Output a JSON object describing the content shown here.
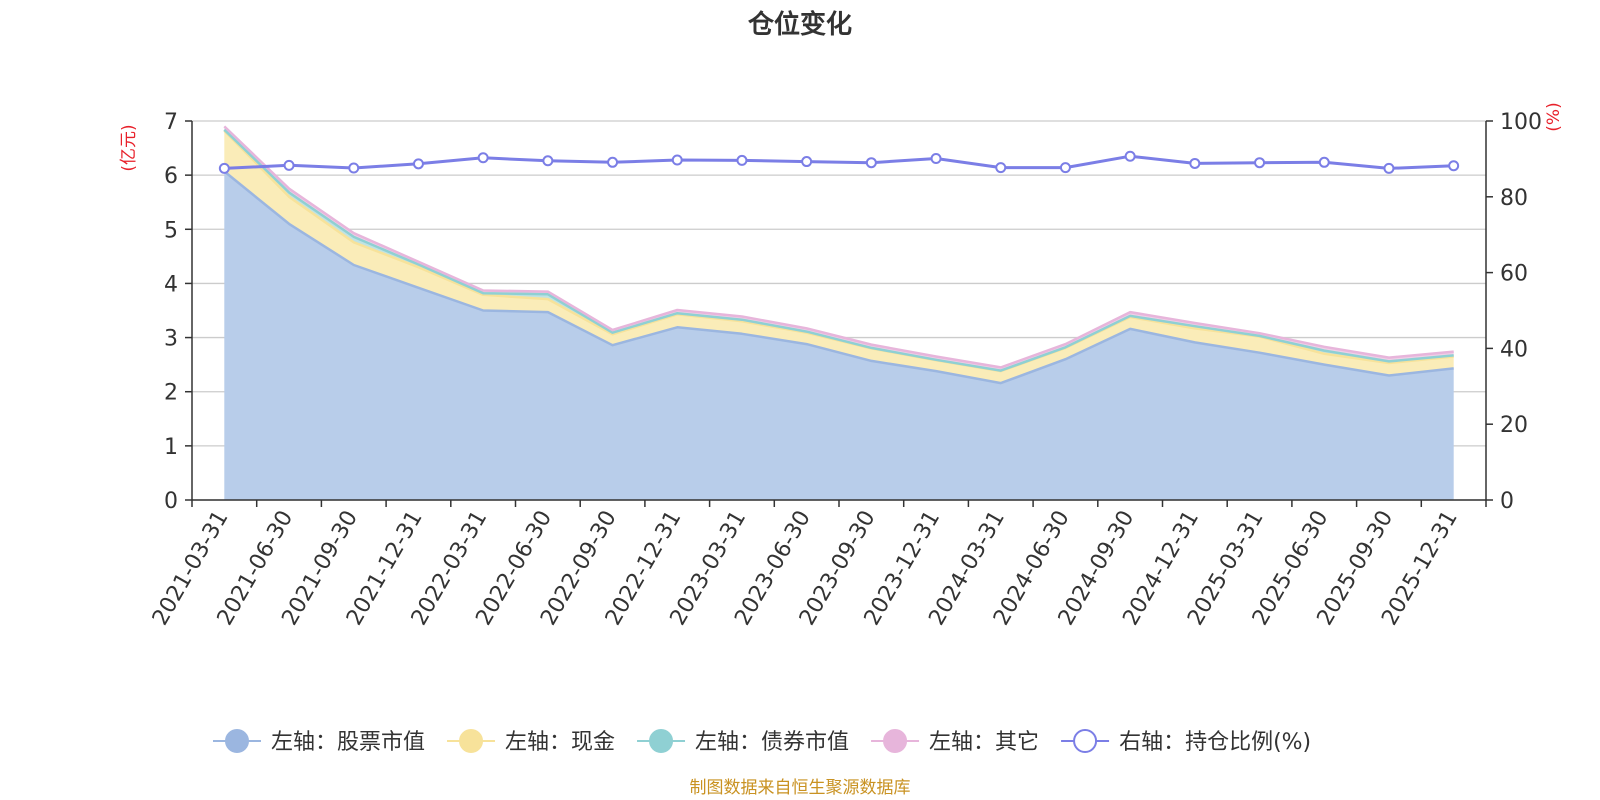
{
  "chart_data": {
    "type": "area",
    "title": "仓位变化",
    "source": "制图数据来自恒生聚源数据库",
    "left_axis": {
      "unit_label": "(亿元)",
      "min": 0,
      "max": 7,
      "ticks": [
        "0",
        "1",
        "2",
        "3",
        "4",
        "5",
        "6",
        "7"
      ]
    },
    "right_axis": {
      "unit_label": "(%)",
      "min": 0,
      "max": 100,
      "ticks": [
        "0",
        "20",
        "40",
        "60",
        "80",
        "100"
      ]
    },
    "categories": [
      "2021-03-31",
      "2021-06-30",
      "2021-09-30",
      "2021-12-31",
      "2022-03-31",
      "2022-06-30",
      "2022-09-30",
      "2022-12-31",
      "2023-03-31",
      "2023-06-30",
      "2023-09-30",
      "2023-12-31",
      "2024-03-31",
      "2024-06-30",
      "2024-09-30",
      "2024-12-31",
      "2025-03-31",
      "2025-06-30",
      "2025-09-30",
      "2025-12-31"
    ],
    "series": [
      {
        "name": "左轴：股票市值",
        "axis": "left",
        "stack": true,
        "color": "#9bb6e0",
        "fill": "#b8cdea",
        "values": [
          6.07,
          5.1,
          4.34,
          3.92,
          3.5,
          3.47,
          2.86,
          3.19,
          3.07,
          2.88,
          2.57,
          2.38,
          2.16,
          2.6,
          3.16,
          2.91,
          2.72,
          2.5,
          2.3,
          2.43
        ]
      },
      {
        "name": "左轴：现金",
        "axis": "left",
        "stack": true,
        "color": "#f7e29a",
        "fill": "#faecb8",
        "values": [
          0.75,
          0.5,
          0.42,
          0.38,
          0.29,
          0.24,
          0.2,
          0.24,
          0.23,
          0.21,
          0.23,
          0.2,
          0.22,
          0.21,
          0.22,
          0.26,
          0.3,
          0.2,
          0.23,
          0.22
        ]
      },
      {
        "name": "左轴：债券市值",
        "axis": "left",
        "stack": true,
        "color": "#8fd0d3",
        "fill": "#bfe3e4",
        "values": [
          0.02,
          0.08,
          0.1,
          0.05,
          0.03,
          0.09,
          0.03,
          0.02,
          0.03,
          0.02,
          0.01,
          0.01,
          0.01,
          0.01,
          0.02,
          0.04,
          0.01,
          0.06,
          0.03,
          0.02
        ]
      },
      {
        "name": "左轴：其它",
        "axis": "left",
        "stack": true,
        "color": "#e7b5db",
        "fill": "#f0cfe7",
        "values": [
          0.06,
          0.07,
          0.07,
          0.05,
          0.05,
          0.05,
          0.05,
          0.06,
          0.06,
          0.06,
          0.06,
          0.06,
          0.06,
          0.06,
          0.07,
          0.06,
          0.05,
          0.07,
          0.07,
          0.07
        ]
      },
      {
        "name": "右轴：持仓比例(%)",
        "axis": "right",
        "stack": false,
        "color": "#7b7ee6",
        "fill": "#ffffff",
        "values": [
          87.5,
          88.3,
          87.6,
          88.7,
          90.3,
          89.5,
          89.1,
          89.7,
          89.6,
          89.3,
          89.0,
          90.1,
          87.7,
          87.7,
          90.7,
          88.8,
          89.0,
          89.1,
          87.5,
          88.2
        ]
      }
    ],
    "legend_position": "bottom-center",
    "grid": true
  }
}
